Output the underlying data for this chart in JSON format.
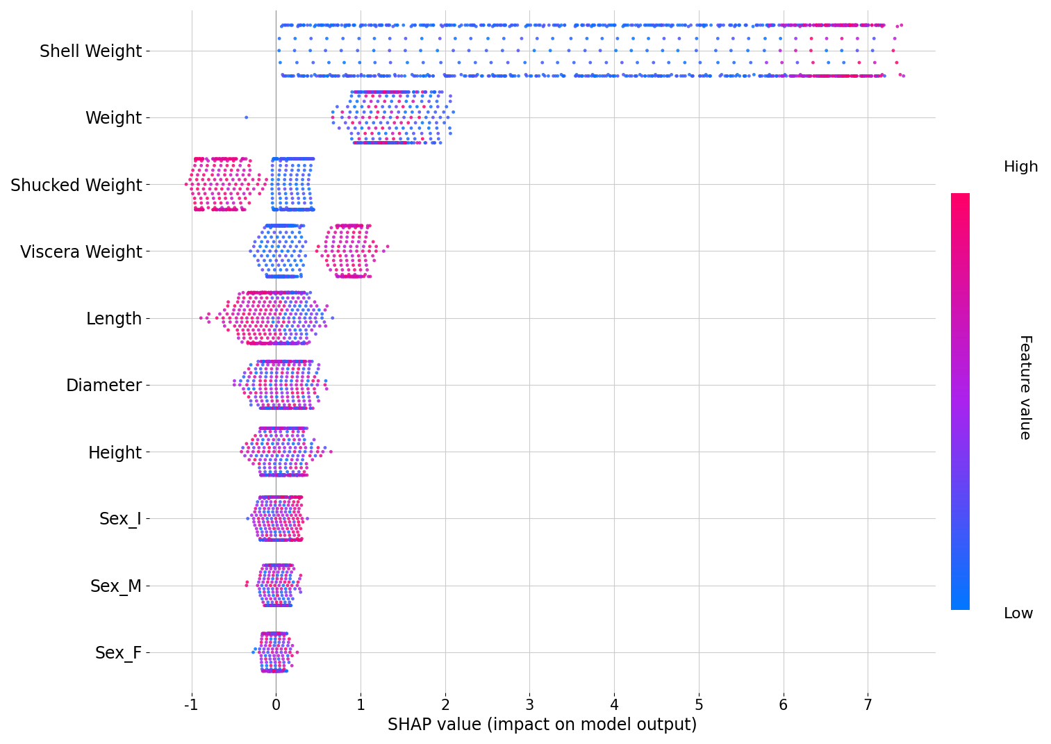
{
  "features": [
    "Shell Weight",
    "Weight",
    "Shucked Weight",
    "Viscera Weight",
    "Length",
    "Diameter",
    "Height",
    "Sex_I",
    "Sex_M",
    "Sex_F"
  ],
  "xlabel": "SHAP value (impact on model output)",
  "colorbar_label": "Feature value",
  "colorbar_high": "High",
  "colorbar_low": "Low",
  "xlim": [
    -1.5,
    7.8
  ],
  "xticks": [
    -1,
    0,
    1,
    2,
    3,
    4,
    5,
    6,
    7
  ],
  "xtick_labels": [
    "-1",
    "0",
    "1",
    "2",
    "3",
    "4",
    "5",
    "6",
    "7"
  ],
  "background_color": "#ffffff",
  "grid_color": "#cccccc",
  "point_size": 12,
  "alpha": 0.85,
  "cmap_low": "#0077ff",
  "cmap_mid": "#aa22ee",
  "cmap_high": "#ff0066",
  "seed": 42,
  "figsize": [
    15.13,
    10.71
  ],
  "dpi": 100
}
